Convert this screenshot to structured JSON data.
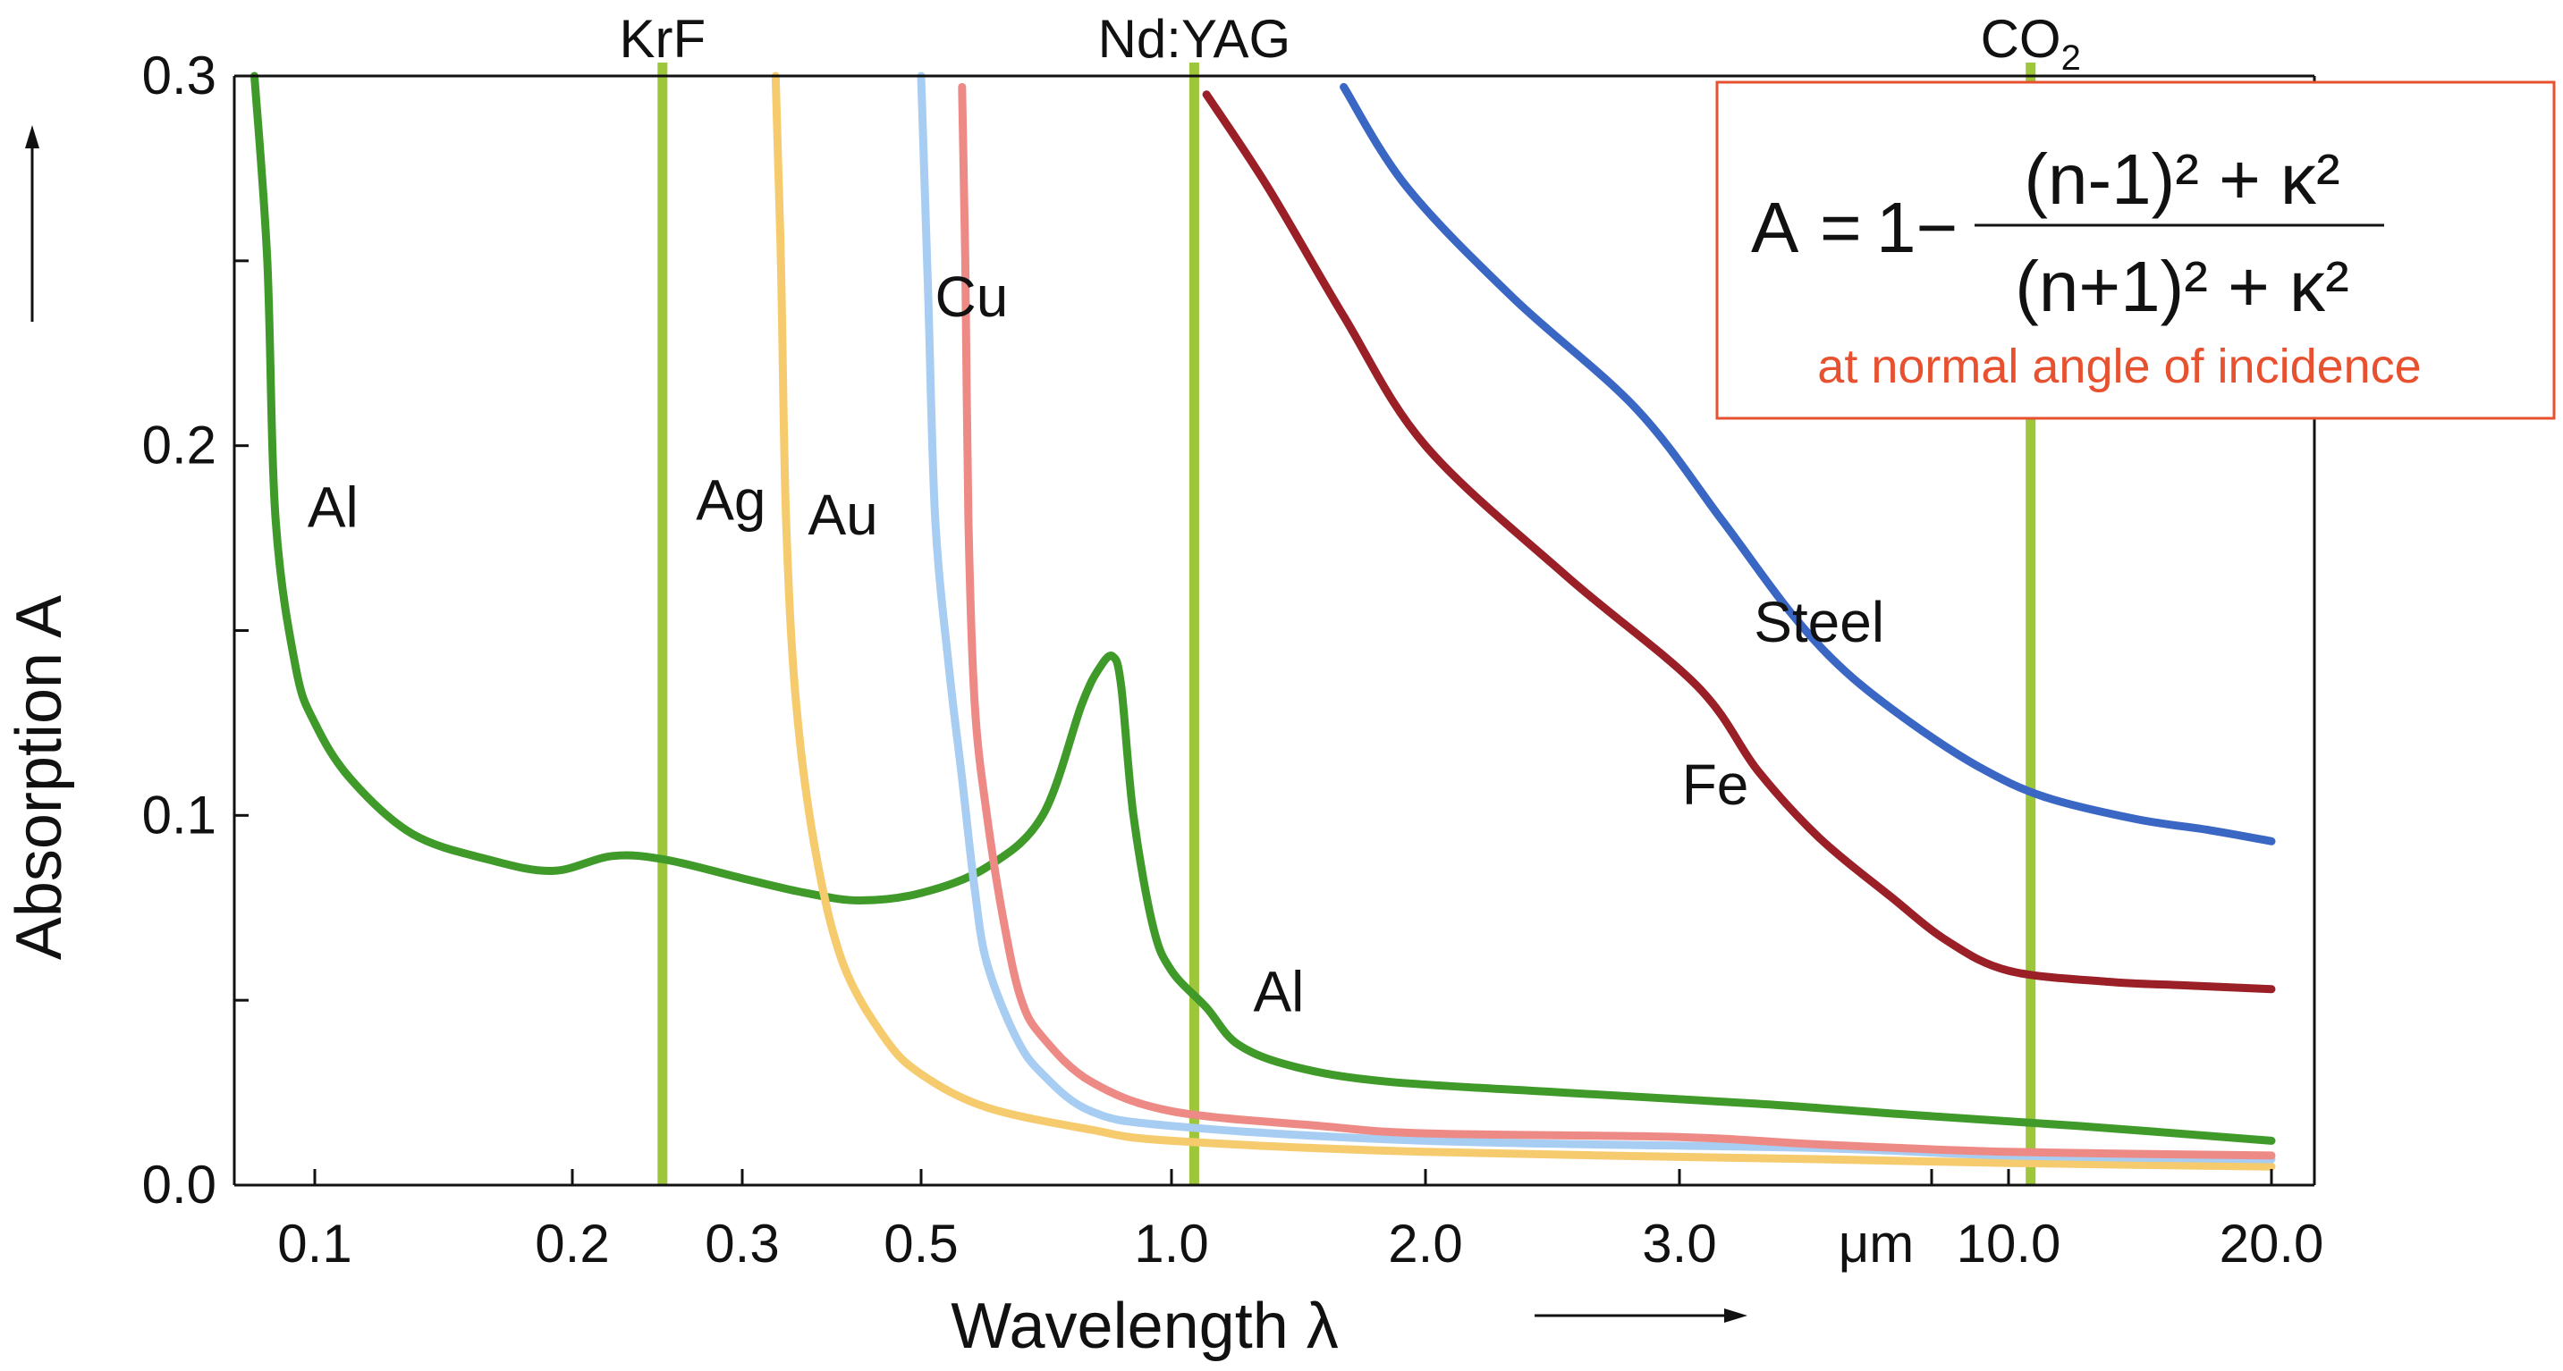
{
  "chart_data": {
    "type": "line",
    "xlabel": "Wavelength λ",
    "ylabel": "Absorption A",
    "x_unit": "μm",
    "ylim": [
      0,
      0.3
    ],
    "y_ticks": [
      "0.0",
      "0.1",
      "0.2",
      "0.3"
    ],
    "x_ticks": [
      {
        "label": "0.1",
        "value": 0.1
      },
      {
        "label": "0.2",
        "value": 0.2
      },
      {
        "label": "0.3",
        "value": 0.3
      },
      {
        "label": "0.5",
        "value": 0.5
      },
      {
        "label": "1.0",
        "value": 1.0
      },
      {
        "label": "2.0",
        "value": 2.0
      },
      {
        "label": "3.0",
        "value": 3.0
      },
      {
        "label": "10.0",
        "value": 10.0
      },
      {
        "label": "20.0",
        "value": 20.0
      }
    ],
    "lasers": [
      {
        "name": "KrF",
        "wavelength": 0.248,
        "color": "#9dc63b"
      },
      {
        "name": "Nd:YAG",
        "wavelength": 1.064,
        "color": "#9dc63b"
      },
      {
        "name": "CO",
        "subscript": "2",
        "wavelength": 10.6,
        "color": "#9dc63b"
      }
    ],
    "series": [
      {
        "name": "Al",
        "color": "#3f9a2a",
        "x": [
          0.085,
          0.088,
          0.09,
          0.095,
          0.1,
          0.11,
          0.13,
          0.16,
          0.19,
          0.22,
          0.25,
          0.3,
          0.36,
          0.42,
          0.5,
          0.6,
          0.7,
          0.78,
          0.82,
          0.85,
          0.87,
          0.9,
          0.95,
          1.0,
          1.1,
          1.2,
          1.4,
          1.8,
          2.5,
          4,
          7,
          12,
          20
        ],
        "y": [
          0.3,
          0.25,
          0.18,
          0.14,
          0.125,
          0.11,
          0.095,
          0.088,
          0.085,
          0.089,
          0.088,
          0.083,
          0.079,
          0.077,
          0.079,
          0.086,
          0.1,
          0.13,
          0.14,
          0.143,
          0.135,
          0.1,
          0.07,
          0.058,
          0.048,
          0.038,
          0.032,
          0.028,
          0.025,
          0.022,
          0.019,
          0.016,
          0.012
        ]
      },
      {
        "name": "Ag",
        "color": "#f5cb6e",
        "x": [
          0.33,
          0.335,
          0.34,
          0.35,
          0.37,
          0.4,
          0.45,
          0.5,
          0.6,
          0.8,
          1.0,
          2.0,
          5,
          10,
          20
        ],
        "y": [
          0.3,
          0.25,
          0.18,
          0.13,
          0.09,
          0.06,
          0.04,
          0.03,
          0.021,
          0.015,
          0.012,
          0.009,
          0.007,
          0.006,
          0.005
        ]
      },
      {
        "name": "Au",
        "color": "#a7cdf3",
        "x": [
          0.5,
          0.51,
          0.52,
          0.54,
          0.56,
          0.58,
          0.6,
          0.65,
          0.7,
          0.8,
          1.0,
          2.0,
          5,
          10,
          20
        ],
        "y": [
          0.3,
          0.24,
          0.18,
          0.14,
          0.11,
          0.08,
          0.06,
          0.04,
          0.03,
          0.02,
          0.016,
          0.012,
          0.01,
          0.008,
          0.007
        ]
      },
      {
        "name": "Cu",
        "color": "#ee8a85",
        "x": [
          0.56,
          0.565,
          0.57,
          0.58,
          0.6,
          0.63,
          0.66,
          0.7,
          0.8,
          1.0,
          1.5,
          2.0,
          3.0,
          5,
          10,
          20
        ],
        "y": [
          0.297,
          0.25,
          0.18,
          0.13,
          0.1,
          0.07,
          0.05,
          0.04,
          0.028,
          0.02,
          0.016,
          0.014,
          0.013,
          0.011,
          0.009,
          0.008
        ]
      },
      {
        "name": "Fe",
        "color": "#9a1f26",
        "x": [
          1.1,
          1.3,
          1.6,
          2.0,
          2.5,
          3.2,
          4,
          5,
          6.5,
          8,
          10,
          13,
          16,
          20
        ],
        "y": [
          0.295,
          0.27,
          0.235,
          0.2,
          0.165,
          0.135,
          0.112,
          0.094,
          0.078,
          0.066,
          0.058,
          0.055,
          0.054,
          0.053
        ]
      },
      {
        "name": "Steel",
        "color": "#3b67c4",
        "x": [
          1.6,
          1.9,
          2.3,
          2.8,
          3.5,
          4.5,
          5.5,
          7,
          9,
          11,
          14,
          17,
          20
        ],
        "y": [
          0.297,
          0.27,
          0.24,
          0.21,
          0.18,
          0.155,
          0.139,
          0.125,
          0.113,
          0.105,
          0.099,
          0.096,
          0.093
        ]
      }
    ],
    "series_labels": [
      {
        "text": "Al",
        "x": 0.105,
        "y": 0.178
      },
      {
        "text": "Ag",
        "x": 0.292,
        "y": 0.18
      },
      {
        "text": "Au",
        "x": 0.4,
        "y": 0.176
      },
      {
        "text": "Cu",
        "x": 0.575,
        "y": 0.235
      },
      {
        "text": "Al",
        "x": 1.34,
        "y": 0.047
      },
      {
        "text": "Fe",
        "x": 3.42,
        "y": 0.103
      },
      {
        "text": "Steel",
        "x": 5.0,
        "y": 0.147
      }
    ],
    "formula": {
      "lhs": "A",
      "eq": "=",
      "one_minus": "1−",
      "numerator": "(n-1)² + κ²",
      "denominator": "(n+1)² + κ²",
      "note": "at normal angle of incidence",
      "note_color": "#e8512f",
      "border_color": "#e8512f"
    }
  }
}
